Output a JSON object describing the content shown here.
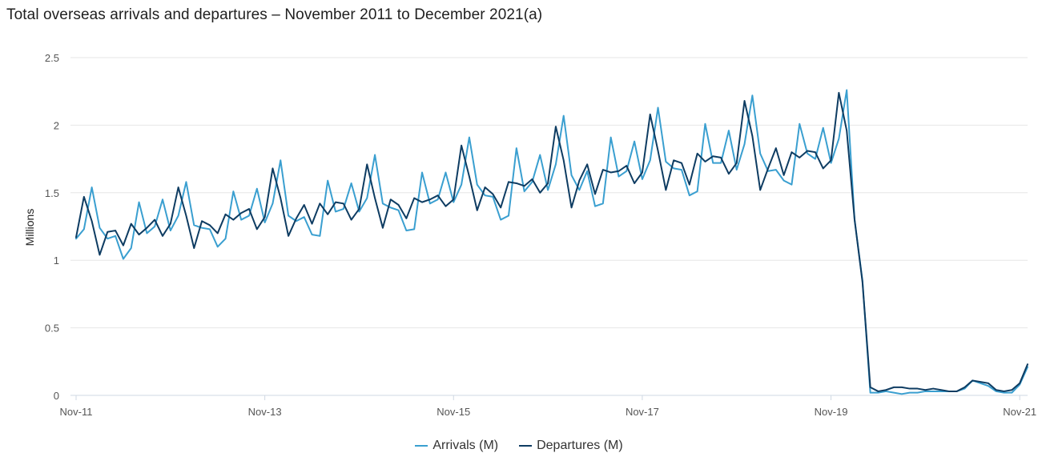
{
  "chart_data": {
    "type": "line",
    "title": "Total overseas arrivals and departures – November 2011 to December 2021(a)",
    "ylabel": "Millions",
    "xlabel": "",
    "ylim": [
      0,
      2.5
    ],
    "yticks": [
      "0",
      "0.5",
      "1",
      "1.5",
      "2",
      "2.5"
    ],
    "ytick_values": [
      0,
      0.5,
      1,
      1.5,
      2,
      2.5
    ],
    "x_start": "Nov-11",
    "x_count": 122,
    "xticks": [
      {
        "label": "Nov-11",
        "index": 0
      },
      {
        "label": "Nov-13",
        "index": 24
      },
      {
        "label": "Nov-15",
        "index": 48
      },
      {
        "label": "Nov-17",
        "index": 72
      },
      {
        "label": "Nov-19",
        "index": 96
      },
      {
        "label": "Nov-21",
        "index": 120
      }
    ],
    "grid": true,
    "legend_position": "bottom",
    "colors": {
      "arrivals": "#3a9fd0",
      "departures": "#0e3c62",
      "grid": "#e6e6e6",
      "axis": "#cfd8e3"
    },
    "series": [
      {
        "name": "Arrivals (M)",
        "key": "arrivals",
        "values": [
          1.16,
          1.23,
          1.54,
          1.24,
          1.16,
          1.18,
          1.01,
          1.09,
          1.43,
          1.2,
          1.25,
          1.45,
          1.22,
          1.33,
          1.58,
          1.26,
          1.24,
          1.23,
          1.1,
          1.16,
          1.51,
          1.3,
          1.33,
          1.53,
          1.28,
          1.42,
          1.74,
          1.33,
          1.29,
          1.32,
          1.19,
          1.18,
          1.59,
          1.36,
          1.38,
          1.57,
          1.36,
          1.46,
          1.78,
          1.42,
          1.39,
          1.37,
          1.22,
          1.23,
          1.65,
          1.42,
          1.45,
          1.65,
          1.43,
          1.56,
          1.91,
          1.56,
          1.48,
          1.47,
          1.3,
          1.33,
          1.83,
          1.51,
          1.58,
          1.78,
          1.52,
          1.71,
          2.07,
          1.63,
          1.52,
          1.66,
          1.4,
          1.42,
          1.91,
          1.62,
          1.66,
          1.88,
          1.6,
          1.74,
          2.13,
          1.73,
          1.68,
          1.67,
          1.48,
          1.51,
          2.01,
          1.72,
          1.72,
          1.96,
          1.67,
          1.86,
          2.22,
          1.79,
          1.66,
          1.67,
          1.59,
          1.56,
          2.01,
          1.79,
          1.75,
          1.98,
          1.72,
          1.9,
          2.26,
          1.3,
          0.85,
          0.02,
          0.02,
          0.03,
          0.02,
          0.01,
          0.02,
          0.02,
          0.03,
          0.03,
          0.03,
          0.03,
          0.03,
          0.05,
          0.11,
          0.09,
          0.07,
          0.03,
          0.02,
          0.02,
          0.08,
          0.21
        ]
      },
      {
        "name": "Departures (M)",
        "key": "departures",
        "values": [
          1.17,
          1.47,
          1.29,
          1.04,
          1.21,
          1.22,
          1.11,
          1.27,
          1.19,
          1.24,
          1.3,
          1.18,
          1.27,
          1.54,
          1.33,
          1.09,
          1.29,
          1.26,
          1.2,
          1.34,
          1.3,
          1.35,
          1.38,
          1.23,
          1.32,
          1.68,
          1.46,
          1.18,
          1.31,
          1.41,
          1.27,
          1.42,
          1.34,
          1.43,
          1.42,
          1.3,
          1.38,
          1.71,
          1.46,
          1.24,
          1.45,
          1.41,
          1.31,
          1.46,
          1.43,
          1.45,
          1.48,
          1.4,
          1.45,
          1.85,
          1.62,
          1.37,
          1.54,
          1.49,
          1.39,
          1.58,
          1.57,
          1.55,
          1.6,
          1.5,
          1.57,
          1.99,
          1.74,
          1.39,
          1.59,
          1.71,
          1.49,
          1.67,
          1.65,
          1.66,
          1.7,
          1.57,
          1.65,
          2.08,
          1.81,
          1.52,
          1.74,
          1.72,
          1.56,
          1.79,
          1.73,
          1.77,
          1.76,
          1.64,
          1.72,
          2.18,
          1.92,
          1.52,
          1.68,
          1.83,
          1.63,
          1.8,
          1.76,
          1.81,
          1.8,
          1.68,
          1.74,
          2.24,
          1.96,
          1.3,
          0.84,
          0.06,
          0.03,
          0.04,
          0.06,
          0.06,
          0.05,
          0.05,
          0.04,
          0.05,
          0.04,
          0.03,
          0.03,
          0.06,
          0.11,
          0.1,
          0.09,
          0.04,
          0.03,
          0.04,
          0.09,
          0.23
        ]
      }
    ]
  }
}
